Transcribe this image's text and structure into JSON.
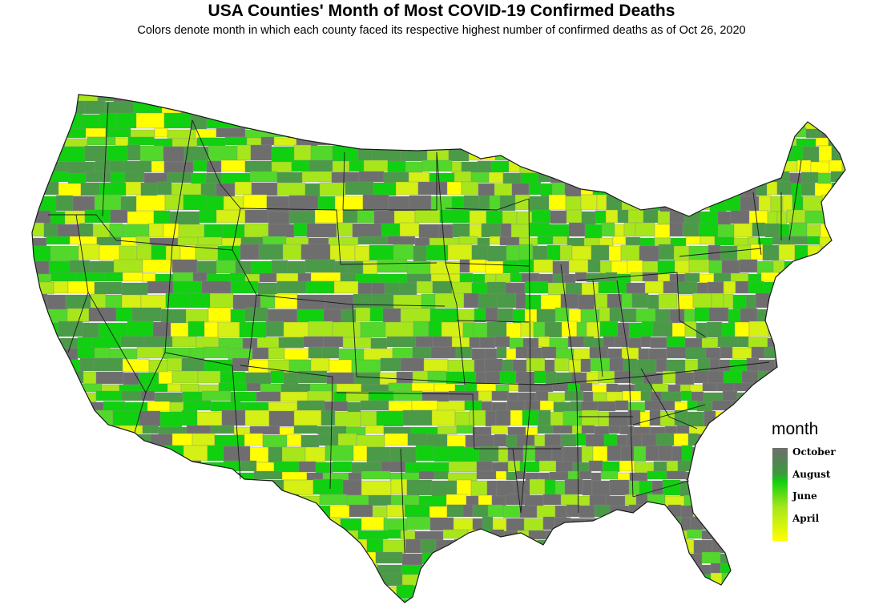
{
  "title": "USA Counties' Month of Most COVID-19 Confirmed Deaths",
  "subtitle": "Colors denote month in which each county faced its respective highest number of confirmed deaths as of Oct 26, 2020",
  "legend": {
    "title": "month",
    "items": [
      {
        "label": "October",
        "color": "#6e6e6e"
      },
      {
        "label": "August",
        "color": "#10d010"
      },
      {
        "label": "June",
        "color": "#a8e61c"
      },
      {
        "label": "April",
        "color": "#ffff00"
      }
    ]
  },
  "palette": {
    "october": "#6e6e6e",
    "september": "#4a9a48",
    "august": "#10d010",
    "july": "#52d82a",
    "june": "#a8e61c",
    "may": "#d4f014",
    "april": "#ffff00",
    "border": "#222222"
  }
}
